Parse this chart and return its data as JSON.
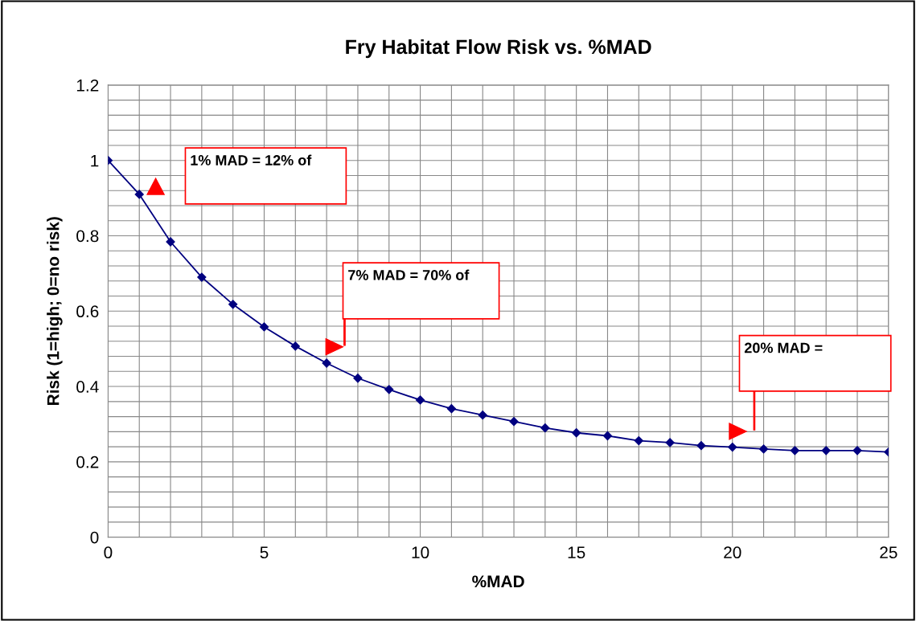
{
  "chart_data": {
    "type": "line",
    "title": "Fry Habitat Flow Risk vs. %MAD",
    "xlabel": "%MAD",
    "ylabel": "Risk (1=high; 0=no risk)",
    "x": [
      0,
      1,
      2,
      3,
      4,
      5,
      6,
      7,
      8,
      9,
      10,
      11,
      12,
      13,
      14,
      15,
      16,
      17,
      18,
      19,
      20,
      21,
      22,
      23,
      24,
      25
    ],
    "series": [
      {
        "color": "#000080",
        "values": [
          1.0,
          0.91,
          0.784,
          0.69,
          0.618,
          0.558,
          0.507,
          0.462,
          0.422,
          0.392,
          0.364,
          0.341,
          0.324,
          0.307,
          0.29,
          0.277,
          0.269,
          0.256,
          0.251,
          0.243,
          0.239,
          0.234,
          0.23,
          0.23,
          0.23,
          0.226
        ]
      }
    ],
    "marker": "diamond",
    "line_style": "solid",
    "grid": true,
    "legend": false,
    "xlim": [
      0,
      25
    ],
    "ylim": [
      0,
      1.2
    ],
    "xticks": [
      0,
      {
        "value": 1,
        "label": null
      },
      {
        "value": 2,
        "label": null
      },
      {
        "value": 3,
        "label": null
      },
      {
        "value": 4,
        "label": null
      },
      5,
      {
        "value": 6,
        "label": null
      },
      {
        "value": 7,
        "label": null
      },
      {
        "value": 8,
        "label": null
      },
      {
        "value": 9,
        "label": null
      },
      10,
      {
        "value": 11,
        "label": null
      },
      {
        "value": 12,
        "label": null
      },
      {
        "value": 13,
        "label": null
      },
      {
        "value": 14,
        "label": null
      },
      15,
      {
        "value": 16,
        "label": null
      },
      {
        "value": 17,
        "label": null
      },
      {
        "value": 18,
        "label": null
      },
      {
        "value": 19,
        "label": null
      },
      20,
      {
        "value": 21,
        "label": null
      },
      {
        "value": 22,
        "label": null
      },
      {
        "value": 23,
        "label": null
      },
      {
        "value": 24,
        "label": null
      },
      25
    ],
    "yticks": [
      0,
      {
        "value": 0.04,
        "label": null
      },
      {
        "value": 0.08,
        "label": null
      },
      {
        "value": 0.12,
        "label": null
      },
      {
        "value": 0.16,
        "label": null
      },
      0.2,
      {
        "value": 0.24,
        "label": null
      },
      {
        "value": 0.28,
        "label": null
      },
      {
        "value": 0.32,
        "label": null
      },
      {
        "value": 0.36,
        "label": null
      },
      0.4,
      {
        "value": 0.44,
        "label": null
      },
      {
        "value": 0.48,
        "label": null
      },
      {
        "value": 0.52,
        "label": null
      },
      {
        "value": 0.56,
        "label": null
      },
      0.6,
      {
        "value": 0.64,
        "label": null
      },
      {
        "value": 0.68,
        "label": null
      },
      {
        "value": 0.72,
        "label": null
      },
      {
        "value": 0.76,
        "label": null
      },
      0.8,
      {
        "value": 0.84,
        "label": null
      },
      {
        "value": 0.88,
        "label": null
      },
      {
        "value": 0.92,
        "label": null
      },
      {
        "value": 0.96,
        "label": null
      },
      1,
      {
        "value": 1.04,
        "label": null
      },
      {
        "value": 1.08,
        "label": null
      },
      {
        "value": 1.12,
        "label": null
      },
      {
        "value": 1.16,
        "label": null
      },
      1.2
    ],
    "annotations": [
      "1% MAD = 12% of",
      "7% MAD = 70% of",
      "20% MAD ="
    ]
  }
}
